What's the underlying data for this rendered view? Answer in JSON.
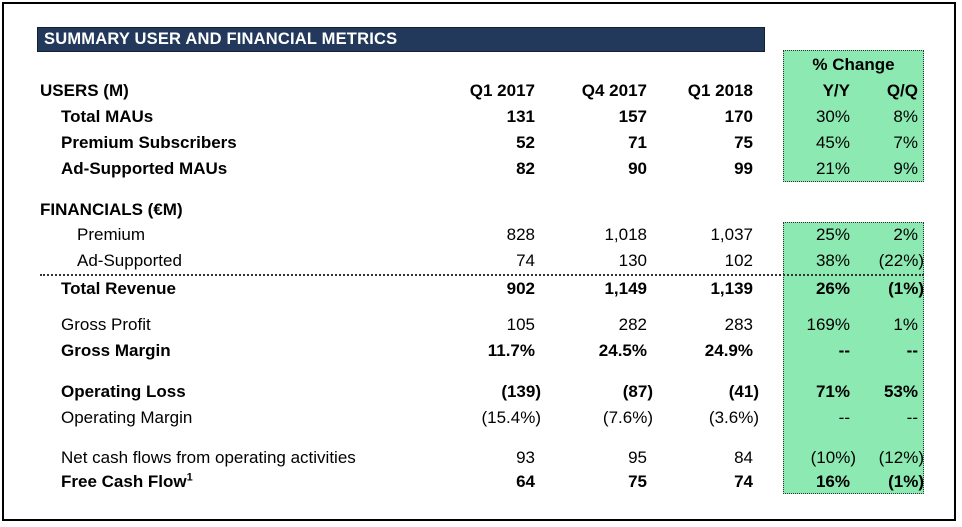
{
  "title": "SUMMARY USER AND FINANCIAL METRICS",
  "colors": {
    "header_bar_bg": "#22395C",
    "header_bar_text": "#FFFFFF",
    "change_box_bg": "#8CE9B2"
  },
  "columns": {
    "q1_2017": "Q1 2017",
    "q4_2017": "Q4 2017",
    "q1_2018": "Q1 2018",
    "pct_change": "% Change",
    "yy": "Y/Y",
    "qq": "Q/Q"
  },
  "sections": {
    "users": {
      "label": "USERS (M)"
    },
    "financials": {
      "label": "FINANCIALS (€M)"
    }
  },
  "rows": [
    {
      "label": "Total MAUs",
      "c1": "131",
      "c2": "157",
      "c3": "170",
      "yy": "30%",
      "qq": "8%"
    },
    {
      "label": "Premium Subscribers",
      "c1": "52",
      "c2": "71",
      "c3": "75",
      "yy": "45%",
      "qq": "7%"
    },
    {
      "label": "Ad-Supported MAUs",
      "c1": "82",
      "c2": "90",
      "c3": "99",
      "yy": "21%",
      "qq": "9%"
    },
    {
      "label": "Premium",
      "c1": "828",
      "c2": "1,018",
      "c3": "1,037",
      "yy": "25%",
      "qq": "2%"
    },
    {
      "label": "Ad-Supported",
      "c1": "74",
      "c2": "130",
      "c3": "102",
      "yy": "38%",
      "qq": "(22%)"
    },
    {
      "label": "Total Revenue",
      "c1": "902",
      "c2": "1,149",
      "c3": "1,139",
      "yy": "26%",
      "qq": "(1%)"
    },
    {
      "label": "Gross Profit",
      "c1": "105",
      "c2": "282",
      "c3": "283",
      "yy": "169%",
      "qq": "1%"
    },
    {
      "label": "Gross Margin",
      "c1": "11.7%",
      "c2": "24.5%",
      "c3": "24.9%",
      "yy": "--",
      "qq": "--"
    },
    {
      "label": "Operating Loss",
      "c1": "(139)",
      "c2": "(87)",
      "c3": "(41)",
      "yy": "71%",
      "qq": "53%"
    },
    {
      "label": "Operating Margin",
      "c1": "(15.4%)",
      "c2": "(7.6%)",
      "c3": "(3.6%)",
      "yy": "--",
      "qq": "--"
    },
    {
      "label": "Net cash flows from operating activities",
      "c1": "93",
      "c2": "95",
      "c3": "84",
      "yy": "(10%)",
      "qq": "(12%)"
    },
    {
      "label": "Free Cash Flow",
      "footnote_marker": "1",
      "c1": "64",
      "c2": "75",
      "c3": "74",
      "yy": "16%",
      "qq": "(1%)"
    }
  ]
}
